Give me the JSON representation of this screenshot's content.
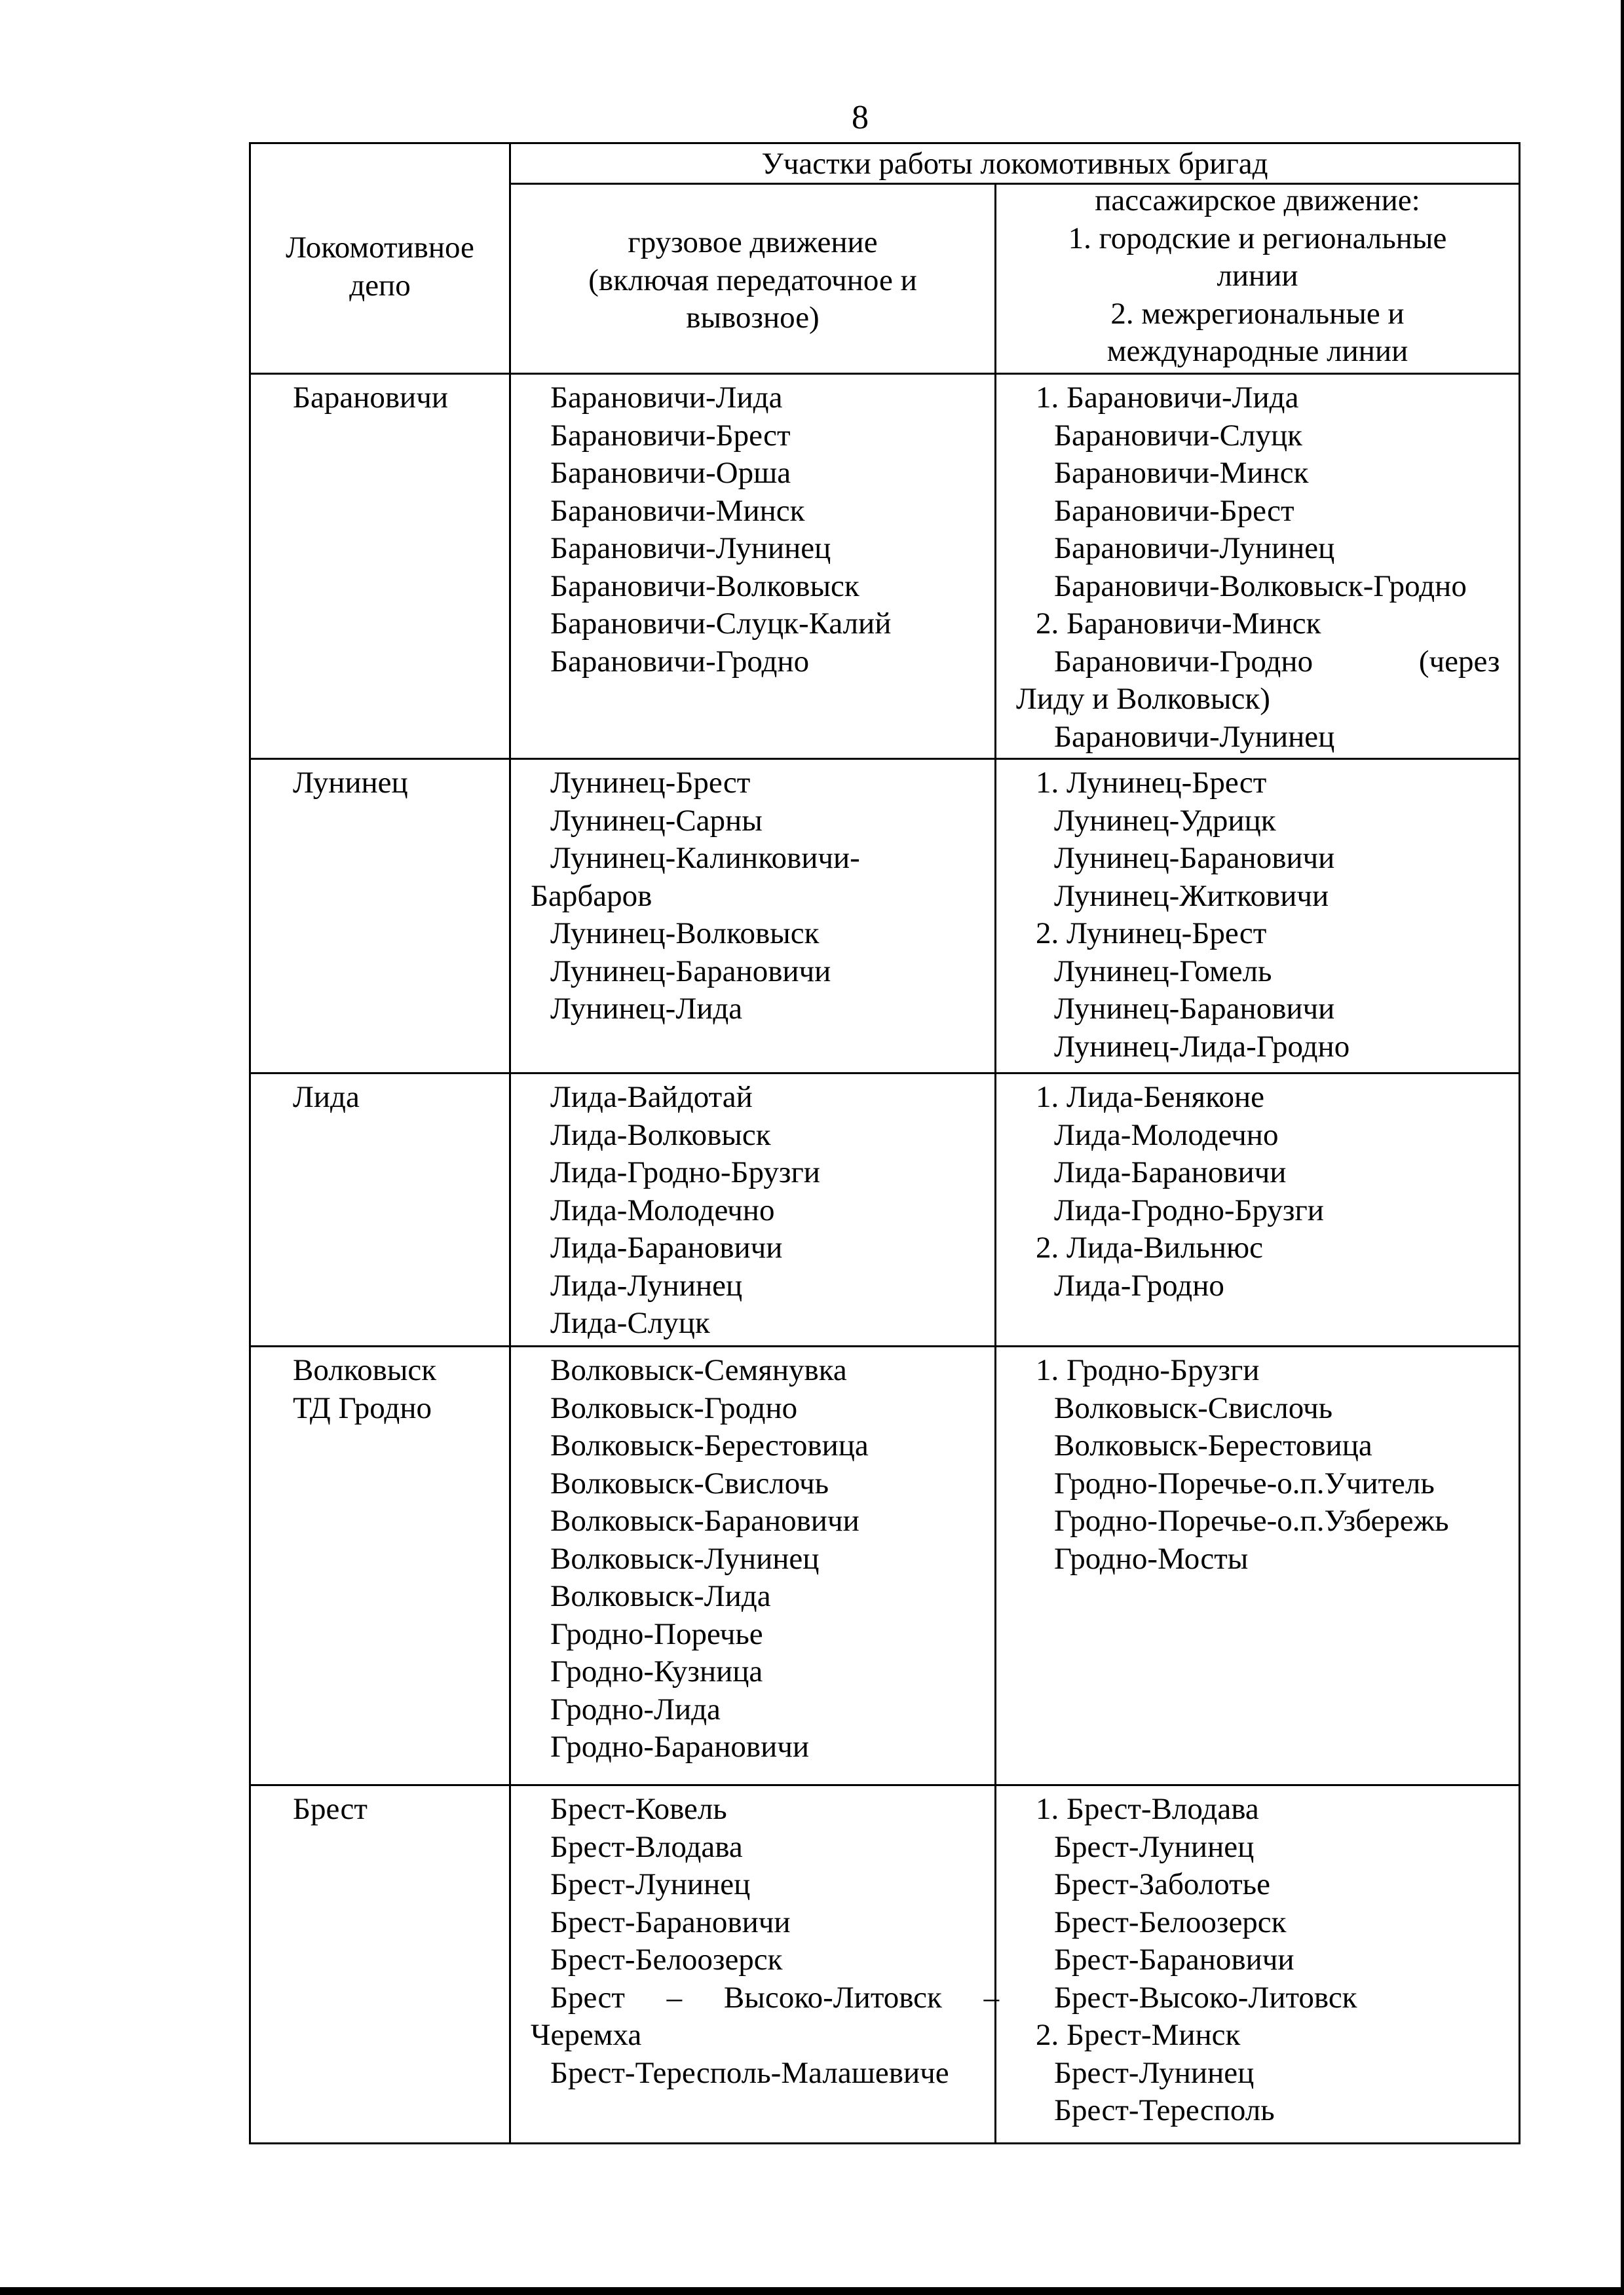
{
  "page_number": "8",
  "header": {
    "depot": [
      "Локомотивное",
      "депо"
    ],
    "sections": "Участки работы локомотивных бригад",
    "freight": [
      "грузовое движение",
      "(включая передаточное и",
      "вывозное)"
    ],
    "passenger": [
      "пассажирское движение:",
      "1. городские и региональные",
      "линии",
      "2. межрегиональные и",
      "международные линии"
    ]
  },
  "rows": [
    {
      "depot": [
        "Барановичи"
      ],
      "freight": [
        "Барановичи-Лида",
        "Барановичи-Брест",
        "Барановичи-Орша",
        "Барановичи-Минск",
        "Барановичи-Лунинец",
        "Барановичи-Волковыск",
        "Барановичи-Слуцк-Калий",
        "Барановичи-Гродно"
      ],
      "passenger": [
        "1. Барановичи-Лида",
        "Барановичи-Слуцк",
        "Барановичи-Минск",
        "Барановичи-Брест",
        "Барановичи-Лунинец",
        "Барановичи-Волковыск-Гродно",
        "2. Барановичи-Минск",
        "Барановичи-Гродно (через",
        "Лиду и Волковыск)",
        "Барановичи-Лунинец"
      ]
    },
    {
      "depot": [
        "Лунинец"
      ],
      "freight": [
        "Лунинец-Брест",
        "Лунинец-Сарны",
        "Лунинец-Калинковичи-",
        "Барбаров",
        "Лунинец-Волковыск",
        "Лунинец-Барановичи",
        "Лунинец-Лида"
      ],
      "passenger": [
        "1. Лунинец-Брест",
        "Лунинец-Удрицк",
        "Лунинец-Барановичи",
        "Лунинец-Житковичи",
        "2. Лунинец-Брест",
        "Лунинец-Гомель",
        "Лунинец-Барановичи",
        "Лунинец-Лида-Гродно"
      ]
    },
    {
      "depot": [
        "Лида"
      ],
      "freight": [
        "Лида-Вайдотай",
        "Лида-Волковыск",
        "Лида-Гродно-Брузги",
        "Лида-Молодечно",
        "Лида-Барановичи",
        "Лида-Лунинец",
        "Лида-Слуцк"
      ],
      "passenger": [
        "1. Лида-Беняконе",
        "Лида-Молодечно",
        "Лида-Барановичи",
        "Лида-Гродно-Брузги",
        "2. Лида-Вильнюс",
        "Лида-Гродно"
      ]
    },
    {
      "depot": [
        "Волковыск",
        "ТД Гродно"
      ],
      "freight": [
        "Волковыск-Семянувка",
        "Волковыск-Гродно",
        "Волковыск-Берестовица",
        "Волковыск-Свислочь",
        "Волковыск-Барановичи",
        "Волковыск-Лунинец",
        "Волковыск-Лида",
        "Гродно-Поречье",
        "Гродно-Кузница",
        "Гродно-Лида",
        "Гродно-Барановичи"
      ],
      "passenger": [
        "1. Гродно-Брузги",
        "Волковыск-Свислочь",
        "Волковыск-Берестовица",
        "Гродно-Поречье-о.п.Учитель",
        "Гродно-Поречье-о.п.Узбережь",
        "Гродно-Мосты"
      ]
    },
    {
      "depot": [
        "Брест"
      ],
      "freight": [
        "Брест-Ковель",
        "Брест-Влодава",
        "Брест-Лунинец",
        "Брест-Барановичи",
        "Брест-Белоозерск",
        "Брест – Высоко-Литовск –",
        "Черемха",
        "Брест-Тересполь-Малашевиче"
      ],
      "passenger": [
        "1. Брест-Влодава",
        "Брест-Лунинец",
        "Брест-Заболотье",
        "Брест-Белоозерск",
        "Брест-Барановичи",
        "Брест-Высоко-Литовск",
        "2. Брест-Минск",
        "Брест-Лунинец",
        "Брест-Тересполь"
      ]
    }
  ]
}
